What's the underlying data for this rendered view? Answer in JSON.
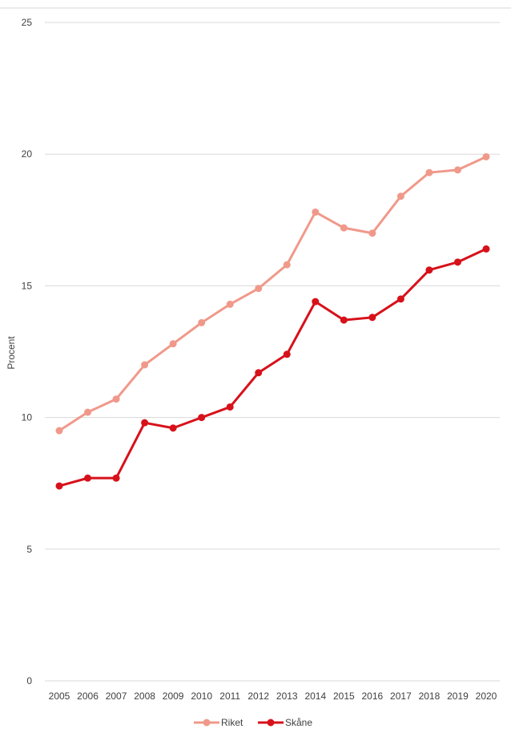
{
  "chart_data": {
    "type": "line",
    "title": "",
    "xlabel": "",
    "ylabel": "Procent",
    "ylim": [
      0,
      25
    ],
    "yticks": [
      "0",
      "5",
      "10",
      "15",
      "20",
      "25"
    ],
    "grid": true,
    "legend_position": "bottom",
    "categories": [
      "2005",
      "2006",
      "2007",
      "2008",
      "2009",
      "2010",
      "2011",
      "2012",
      "2013",
      "2014",
      "2015",
      "2016",
      "2017",
      "2018",
      "2019",
      "2020"
    ],
    "series": [
      {
        "name": "Riket",
        "color": "#F0998A",
        "values": [
          9.5,
          10.2,
          10.7,
          12.0,
          12.8,
          13.6,
          14.3,
          14.9,
          15.8,
          17.8,
          17.2,
          17.0,
          18.4,
          19.3,
          19.4,
          19.9
        ]
      },
      {
        "name": "Skåne",
        "color": "#D7111A",
        "values": [
          7.4,
          7.7,
          7.7,
          9.8,
          9.6,
          10.0,
          10.4,
          11.7,
          12.4,
          14.4,
          13.7,
          13.8,
          14.5,
          15.6,
          15.9,
          16.4
        ]
      }
    ]
  }
}
